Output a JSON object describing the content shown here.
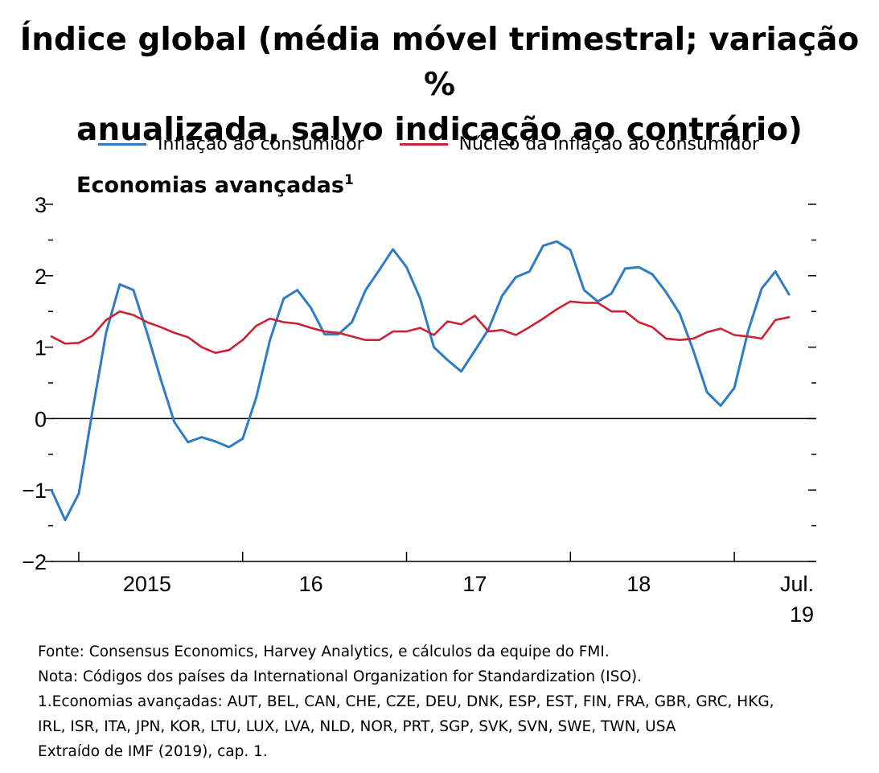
{
  "header": {
    "title_line1": "Índice global (média móvel trimestral; variação %",
    "title_line2": "anualizada, salvo indicação ao contrário)"
  },
  "chart_data": {
    "type": "line",
    "title": "Economias avançadas",
    "title_footnote": "1",
    "ylim": [
      -2,
      3
    ],
    "yticks": [
      -2,
      -1,
      0,
      1,
      2,
      3
    ],
    "ytick_labels": [
      "−2",
      "−1",
      "0",
      "1",
      "2",
      "3"
    ],
    "x_range": [
      "2014-11",
      "2019-07"
    ],
    "x_tick_labels": [
      {
        "label": "2015",
        "at": "2015-06"
      },
      {
        "label": "16",
        "at": "2016-06"
      },
      {
        "label": "17",
        "at": "2017-06"
      },
      {
        "label": "18",
        "at": "2018-06"
      },
      {
        "label": "Jul.",
        "label2": "19",
        "at": "2019-07"
      }
    ],
    "grid": false,
    "legend_position": "top",
    "series": [
      {
        "name": "Inflação ao consumidor",
        "color": "#2f7bc4",
        "points": [
          [
            "2014-11",
            -1.0
          ],
          [
            "2014-12",
            -1.42
          ],
          [
            "2015-01",
            -1.05
          ],
          [
            "2015-02",
            0.1
          ],
          [
            "2015-03",
            1.2
          ],
          [
            "2015-04",
            1.88
          ],
          [
            "2015-05",
            1.8
          ],
          [
            "2015-06",
            1.2
          ],
          [
            "2015-07",
            0.55
          ],
          [
            "2015-08",
            -0.05
          ],
          [
            "2015-09",
            -0.33
          ],
          [
            "2015-10",
            -0.26
          ],
          [
            "2015-11",
            -0.32
          ],
          [
            "2015-12",
            -0.4
          ],
          [
            "2016-01",
            -0.28
          ],
          [
            "2016-02",
            0.3
          ],
          [
            "2016-03",
            1.1
          ],
          [
            "2016-04",
            1.68
          ],
          [
            "2016-05",
            1.8
          ],
          [
            "2016-06",
            1.55
          ],
          [
            "2016-07",
            1.18
          ],
          [
            "2016-08",
            1.18
          ],
          [
            "2016-09",
            1.35
          ],
          [
            "2016-10",
            1.8
          ],
          [
            "2016-11",
            2.08
          ],
          [
            "2016-12",
            2.37
          ],
          [
            "2017-01",
            2.12
          ],
          [
            "2017-02",
            1.68
          ],
          [
            "2017-03",
            1.0
          ],
          [
            "2017-04",
            0.82
          ],
          [
            "2017-05",
            0.66
          ],
          [
            "2017-06",
            0.95
          ],
          [
            "2017-07",
            1.25
          ],
          [
            "2017-08",
            1.72
          ],
          [
            "2017-09",
            1.98
          ],
          [
            "2017-10",
            2.06
          ],
          [
            "2017-11",
            2.42
          ],
          [
            "2017-12",
            2.48
          ],
          [
            "2018-01",
            2.36
          ],
          [
            "2018-02",
            1.8
          ],
          [
            "2018-03",
            1.64
          ],
          [
            "2018-04",
            1.75
          ],
          [
            "2018-05",
            2.1
          ],
          [
            "2018-06",
            2.12
          ],
          [
            "2018-07",
            2.02
          ],
          [
            "2018-08",
            1.77
          ],
          [
            "2018-09",
            1.47
          ],
          [
            "2018-10",
            0.95
          ],
          [
            "2018-11",
            0.37
          ],
          [
            "2018-12",
            0.18
          ],
          [
            "2019-01",
            0.43
          ],
          [
            "2019-02",
            1.22
          ],
          [
            "2019-03",
            1.82
          ],
          [
            "2019-04",
            2.06
          ],
          [
            "2019-05",
            1.74
          ]
        ]
      },
      {
        "name": "Núcleo da inflação ao consumidor",
        "color": "#cc2233",
        "points": [
          [
            "2014-11",
            1.15
          ],
          [
            "2014-12",
            1.05
          ],
          [
            "2015-01",
            1.06
          ],
          [
            "2015-02",
            1.16
          ],
          [
            "2015-03",
            1.38
          ],
          [
            "2015-04",
            1.5
          ],
          [
            "2015-05",
            1.45
          ],
          [
            "2015-06",
            1.35
          ],
          [
            "2015-07",
            1.28
          ],
          [
            "2015-08",
            1.2
          ],
          [
            "2015-09",
            1.14
          ],
          [
            "2015-10",
            1.0
          ],
          [
            "2015-11",
            0.92
          ],
          [
            "2015-12",
            0.96
          ],
          [
            "2016-01",
            1.1
          ],
          [
            "2016-02",
            1.3
          ],
          [
            "2016-03",
            1.4
          ],
          [
            "2016-04",
            1.35
          ],
          [
            "2016-05",
            1.33
          ],
          [
            "2016-06",
            1.27
          ],
          [
            "2016-07",
            1.22
          ],
          [
            "2016-08",
            1.2
          ],
          [
            "2016-09",
            1.15
          ],
          [
            "2016-10",
            1.1
          ],
          [
            "2016-11",
            1.1
          ],
          [
            "2016-12",
            1.22
          ],
          [
            "2017-01",
            1.22
          ],
          [
            "2017-02",
            1.27
          ],
          [
            "2017-03",
            1.17
          ],
          [
            "2017-04",
            1.36
          ],
          [
            "2017-05",
            1.32
          ],
          [
            "2017-06",
            1.44
          ],
          [
            "2017-07",
            1.22
          ],
          [
            "2017-08",
            1.24
          ],
          [
            "2017-09",
            1.17
          ],
          [
            "2017-10",
            1.28
          ],
          [
            "2017-11",
            1.4
          ],
          [
            "2017-12",
            1.53
          ],
          [
            "2018-01",
            1.64
          ],
          [
            "2018-02",
            1.62
          ],
          [
            "2018-03",
            1.62
          ],
          [
            "2018-04",
            1.5
          ],
          [
            "2018-05",
            1.5
          ],
          [
            "2018-06",
            1.35
          ],
          [
            "2018-07",
            1.28
          ],
          [
            "2018-08",
            1.12
          ],
          [
            "2018-09",
            1.1
          ],
          [
            "2018-10",
            1.12
          ],
          [
            "2018-11",
            1.21
          ],
          [
            "2018-12",
            1.26
          ],
          [
            "2019-01",
            1.17
          ],
          [
            "2019-02",
            1.15
          ],
          [
            "2019-03",
            1.12
          ],
          [
            "2019-04",
            1.38
          ],
          [
            "2019-05",
            1.42
          ]
        ]
      }
    ]
  },
  "notes": [
    "Fonte: Consensus Economics, Harvey Analytics, e cálculos da equipe do FMI.",
    "Nota: Códigos dos países da International Organization for Standardization (ISO).",
    "1.Economias avançadas: AUT, BEL, CAN, CHE, CZE, DEU, DNK, ESP, EST, FIN, FRA, GBR, GRC, HKG,",
    "IRL, ISR, ITA, JPN, KOR, LTU, LUX, LVA, NLD, NOR, PRT, SGP, SVK, SVN, SWE, TWN, USA",
    "Extraído de IMF (2019), cap. 1."
  ]
}
